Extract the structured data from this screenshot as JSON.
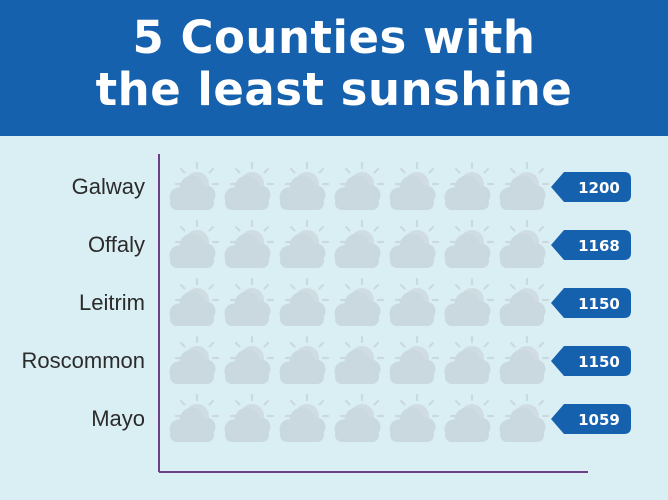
{
  "header": {
    "title_line1": "5 Counties with",
    "title_line2": "the least sunshine"
  },
  "colors": {
    "header_bg": "#1661ae",
    "background": "#daeff4",
    "axis": "#6c3f87",
    "badge": "#1661ae",
    "sun": "#f6a821",
    "cloud": "#a9d3f0",
    "cloud_faded": "#c9d9df"
  },
  "chart_data": {
    "type": "bar",
    "style": "pictogram",
    "icon": "sun-behind-cloud-icon",
    "categories": [
      "Galway",
      "Offaly",
      "Leitrim",
      "Roscommon",
      "Mayo"
    ],
    "values": [
      1200,
      1168,
      1150,
      1150,
      1059
    ],
    "value_labels": [
      "1200",
      "1168",
      "1150",
      "1150",
      "1059"
    ],
    "title": "5 Counties with the least sunshine",
    "xlabel": "",
    "ylabel": ""
  }
}
